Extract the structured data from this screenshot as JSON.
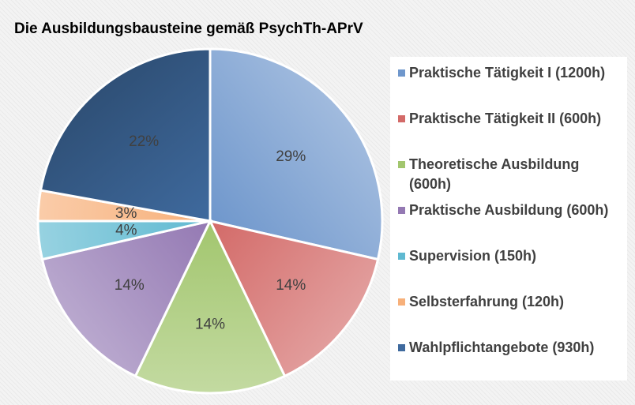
{
  "chart_data": {
    "type": "pie",
    "title": "Die Ausbildungsbausteine gemäß PsychTh-APrV",
    "slices": [
      {
        "label": "Praktische Tätigkeit I (1200h)",
        "value": 1200,
        "percent_label": "29%",
        "color": "#6f97cc"
      },
      {
        "label": "Praktische Tätigkeit II (600h)",
        "value": 600,
        "percent_label": "14%",
        "color": "#d36a68"
      },
      {
        "label": "Theoretische Ausbildung (600h)",
        "value": 600,
        "percent_label": "14%",
        "color": "#a2c66e"
      },
      {
        "label": "Praktische Ausbildung (600h)",
        "value": 600,
        "percent_label": "14%",
        "color": "#9479b3"
      },
      {
        "label": "Supervision (150h)",
        "value": 150,
        "percent_label": "4%",
        "color": "#5fb9d1"
      },
      {
        "label": "Selbsterfahrung (120h)",
        "value": 120,
        "percent_label": "3%",
        "color": "#f7b07a"
      },
      {
        "label": "Wahlpflichtangebote (930h)",
        "value": 930,
        "percent_label": "22%",
        "color": "#3f6a9e"
      }
    ],
    "legend_position": "right"
  }
}
